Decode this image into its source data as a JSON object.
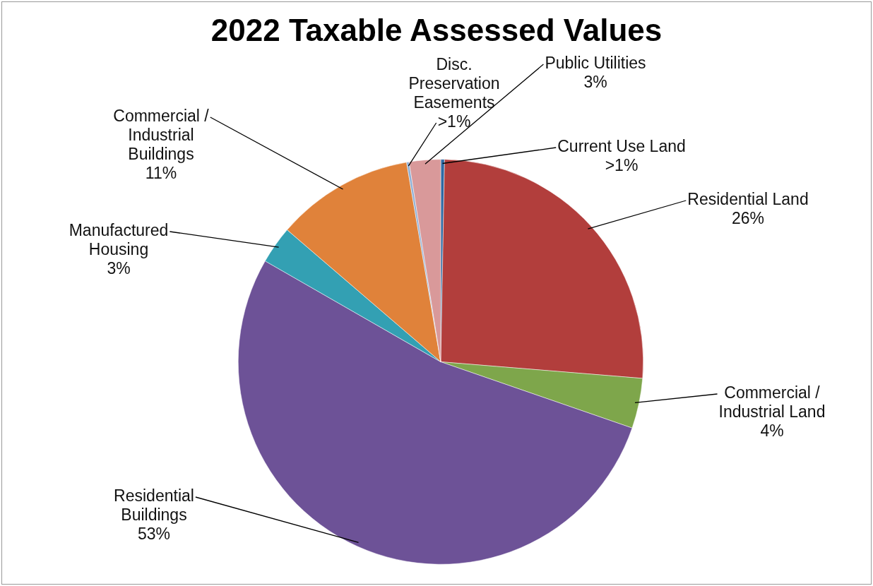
{
  "chart_data": {
    "type": "pie",
    "title": "2022 Taxable Assessed Values",
    "categories": [
      "Current Use Land",
      "Residential Land",
      "Commercial / Industrial Land",
      "Residential Buildings",
      "Manufactured Housing",
      "Commercial / Industrial Buildings",
      "Disc. Preservation Easements",
      "Public Utilities"
    ],
    "values": [
      0.3,
      26,
      4,
      53,
      3,
      11,
      0.2,
      2.5
    ],
    "value_labels": [
      ">1%",
      "26%",
      "4%",
      "53%",
      "3%",
      "11%",
      ">1%",
      "3%"
    ],
    "colors": [
      "#2e6aa3",
      "#b23e3c",
      "#7ea64b",
      "#6d5297",
      "#33a0b3",
      "#e0823a",
      "#8fb0d6",
      "#d9999a"
    ],
    "legend": false
  }
}
